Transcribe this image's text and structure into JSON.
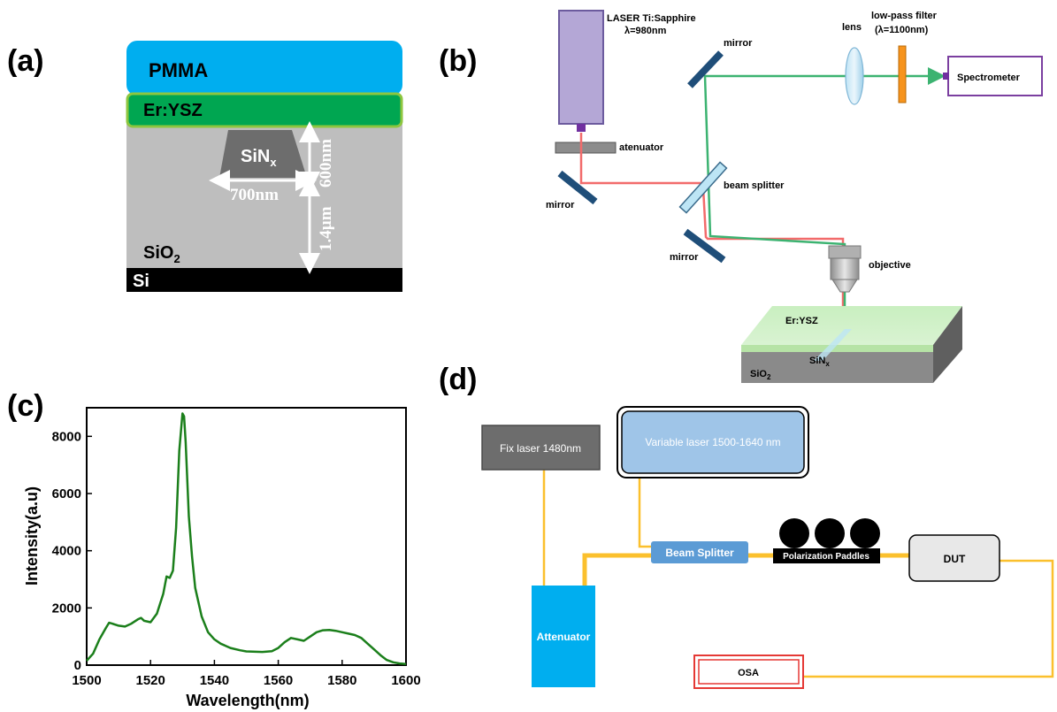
{
  "panels": {
    "a": "(a)",
    "b": "(b)",
    "c": "(c)",
    "d": "(d)"
  },
  "panel_a": {
    "pmma": "PMMA",
    "er_ysz": "Er:YSZ",
    "sinx_base": "SiN",
    "sinx_sub": "x",
    "width": "700nm",
    "height_top": "600nm",
    "height_bottom": "1.4µm",
    "sio2_base": "SiO",
    "sio2_sub": "2",
    "si": "Si",
    "colors": {
      "pmma": "#00AEEF",
      "er_ysz": "#00A651",
      "er_ysz_border": "#8DC63F",
      "cladding": "#BEBEBE",
      "core": "#6D6D6D",
      "si": "#000000"
    }
  },
  "panel_b": {
    "laser_line1": "LASER Ti:Sapphire",
    "laser_line2": "λ=980nm",
    "attenuator": "atenuator",
    "mirror_left": "mirror",
    "mirror_top": "mirror",
    "mirror_bottom": "mirror",
    "beam_splitter": "beam splitter",
    "lens": "lens",
    "filter_line1": "low-pass filter",
    "filter_line2": "(λ=1100nm)",
    "spectrometer": "Spectrometer",
    "objective": "objective",
    "sample_er": "Er:YSZ",
    "sample_sinx_base": "SiN",
    "sample_sinx_sub": "x",
    "sample_sio2_base": "SiO",
    "sample_sio2_sub": "2",
    "colors": {
      "laser_box": "#B4A7D6",
      "beam_pump": "#F26B6B",
      "beam_signal": "#3CB371",
      "mirror": "#1F4E79",
      "filter": "#F7941D"
    }
  },
  "panel_d": {
    "fix_laser": "Fix laser 1480nm",
    "variable_laser": "Variable laser 1500-1640 nm",
    "beam_splitter": "Beam Splitter",
    "polarization": "Polarization Paddles",
    "dut": "DUT",
    "attenuator": "Attenuator",
    "osa": "OSA",
    "colors": {
      "fiber": "#FBC02D",
      "fix_laser": "#6D6D6D",
      "variable_laser": "#9FC5E8",
      "beam_splitter": "#5B9BD5",
      "attenuator": "#00AEEF",
      "osa_border": "#E53935"
    }
  },
  "chart_data": {
    "type": "line",
    "xlabel": "Wavelength(nm)",
    "ylabel": "Intensity(a.u)",
    "xlim": [
      1500,
      1600
    ],
    "ylim": [
      0,
      9000
    ],
    "xticks": [
      1500,
      1520,
      1540,
      1560,
      1580,
      1600
    ],
    "yticks": [
      0,
      2000,
      4000,
      6000,
      8000
    ],
    "series": [
      {
        "color": "#1B7F1B",
        "x": [
          1500,
          1502,
          1504,
          1506,
          1507,
          1508,
          1510,
          1512,
          1514,
          1516,
          1517,
          1518,
          1520,
          1522,
          1524,
          1525,
          1526,
          1527,
          1528,
          1529,
          1530,
          1530.5,
          1531,
          1532,
          1533,
          1534,
          1536,
          1538,
          1540,
          1542,
          1545,
          1548,
          1550,
          1555,
          1558,
          1560,
          1562,
          1564,
          1566,
          1568,
          1570,
          1572,
          1574,
          1576,
          1578,
          1580,
          1582,
          1584,
          1586,
          1588,
          1590,
          1592,
          1594,
          1596,
          1598,
          1600
        ],
        "values": [
          150,
          400,
          900,
          1300,
          1480,
          1450,
          1380,
          1350,
          1450,
          1600,
          1650,
          1550,
          1500,
          1800,
          2500,
          3100,
          3050,
          3300,
          4800,
          7500,
          8800,
          8700,
          7800,
          5200,
          3800,
          2700,
          1700,
          1150,
          900,
          750,
          600,
          520,
          480,
          460,
          490,
          600,
          800,
          950,
          900,
          850,
          1000,
          1150,
          1220,
          1230,
          1200,
          1150,
          1100,
          1050,
          950,
          750,
          550,
          350,
          180,
          100,
          60,
          40
        ]
      }
    ]
  }
}
